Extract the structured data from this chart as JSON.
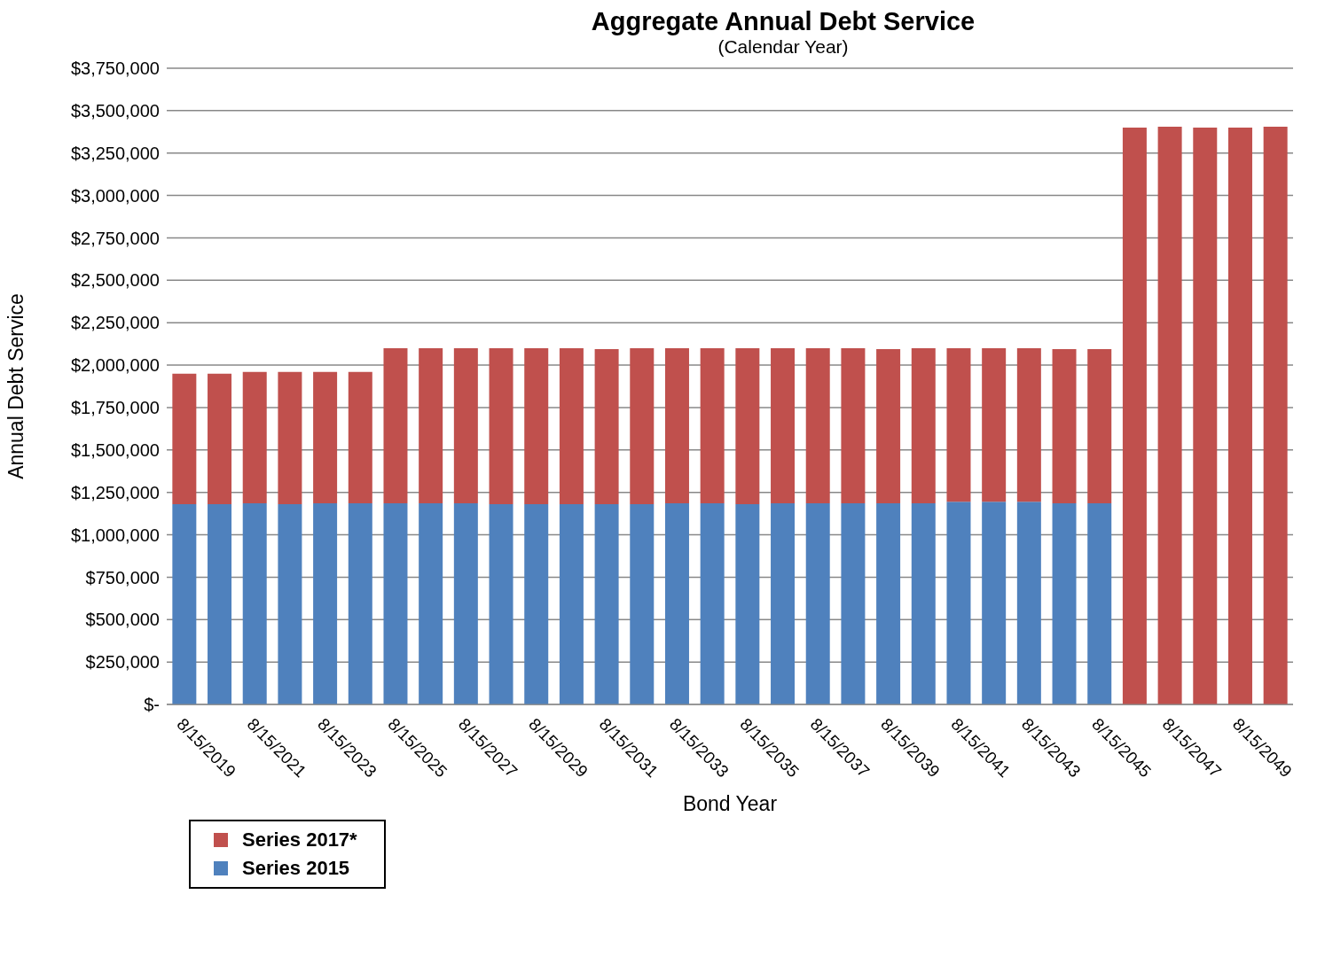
{
  "chart_data": {
    "type": "bar",
    "title": "Aggregate Annual Debt Service",
    "subtitle": "(Calendar Year)",
    "xlabel": "Bond Year",
    "ylabel": "Annual Debt Service",
    "categories": [
      "8/15/2019",
      null,
      "8/15/2021",
      null,
      "8/15/2023",
      null,
      "8/15/2025",
      null,
      "8/15/2027",
      null,
      "8/15/2029",
      null,
      "8/15/2031",
      null,
      "8/15/2033",
      null,
      "8/15/2035",
      null,
      "8/15/2037",
      null,
      "8/15/2039",
      null,
      "8/15/2041",
      null,
      "8/15/2043",
      null,
      "8/15/2045",
      null,
      "8/15/2047",
      null,
      "8/15/2049",
      null
    ],
    "stacked": true,
    "series": [
      {
        "name": "Series 2015",
        "color": "#4f81bd",
        "values": [
          1180000,
          1180000,
          1185000,
          1180000,
          1185000,
          1185000,
          1185000,
          1185000,
          1185000,
          1180000,
          1180000,
          1180000,
          1180000,
          1180000,
          1185000,
          1185000,
          1180000,
          1185000,
          1185000,
          1185000,
          1185000,
          1185000,
          1195000,
          1195000,
          1195000,
          1185000,
          1185000,
          null,
          null,
          null,
          null,
          null
        ]
      },
      {
        "name": "Series 2017*",
        "color": "#c0504d",
        "values": [
          770000,
          770000,
          775000,
          780000,
          775000,
          775000,
          915000,
          915000,
          915000,
          920000,
          920000,
          920000,
          915000,
          920000,
          915000,
          915000,
          920000,
          915000,
          915000,
          915000,
          910000,
          915000,
          905000,
          905000,
          905000,
          910000,
          910000,
          3400000,
          3405000,
          3400000,
          3400000,
          3405000
        ]
      }
    ],
    "ylim": [
      0,
      3750000
    ],
    "yticks": [
      {
        "value": 0,
        "label": "$-"
      },
      {
        "value": 250000,
        "label": "$250,000"
      },
      {
        "value": 500000,
        "label": "$500,000"
      },
      {
        "value": 750000,
        "label": "$750,000"
      },
      {
        "value": 1000000,
        "label": "$1,000,000"
      },
      {
        "value": 1250000,
        "label": "$1,250,000"
      },
      {
        "value": 1500000,
        "label": "$1,500,000"
      },
      {
        "value": 1750000,
        "label": "$1,750,000"
      },
      {
        "value": 2000000,
        "label": "$2,000,000"
      },
      {
        "value": 2250000,
        "label": "$2,250,000"
      },
      {
        "value": 2500000,
        "label": "$2,500,000"
      },
      {
        "value": 2750000,
        "label": "$2,750,000"
      },
      {
        "value": 3000000,
        "label": "$3,000,000"
      },
      {
        "value": 3250000,
        "label": "$3,250,000"
      },
      {
        "value": 3500000,
        "label": "$3,500,000"
      },
      {
        "value": 3750000,
        "label": "$3,750,000"
      }
    ],
    "grid": "y",
    "legend": "bottom left"
  }
}
